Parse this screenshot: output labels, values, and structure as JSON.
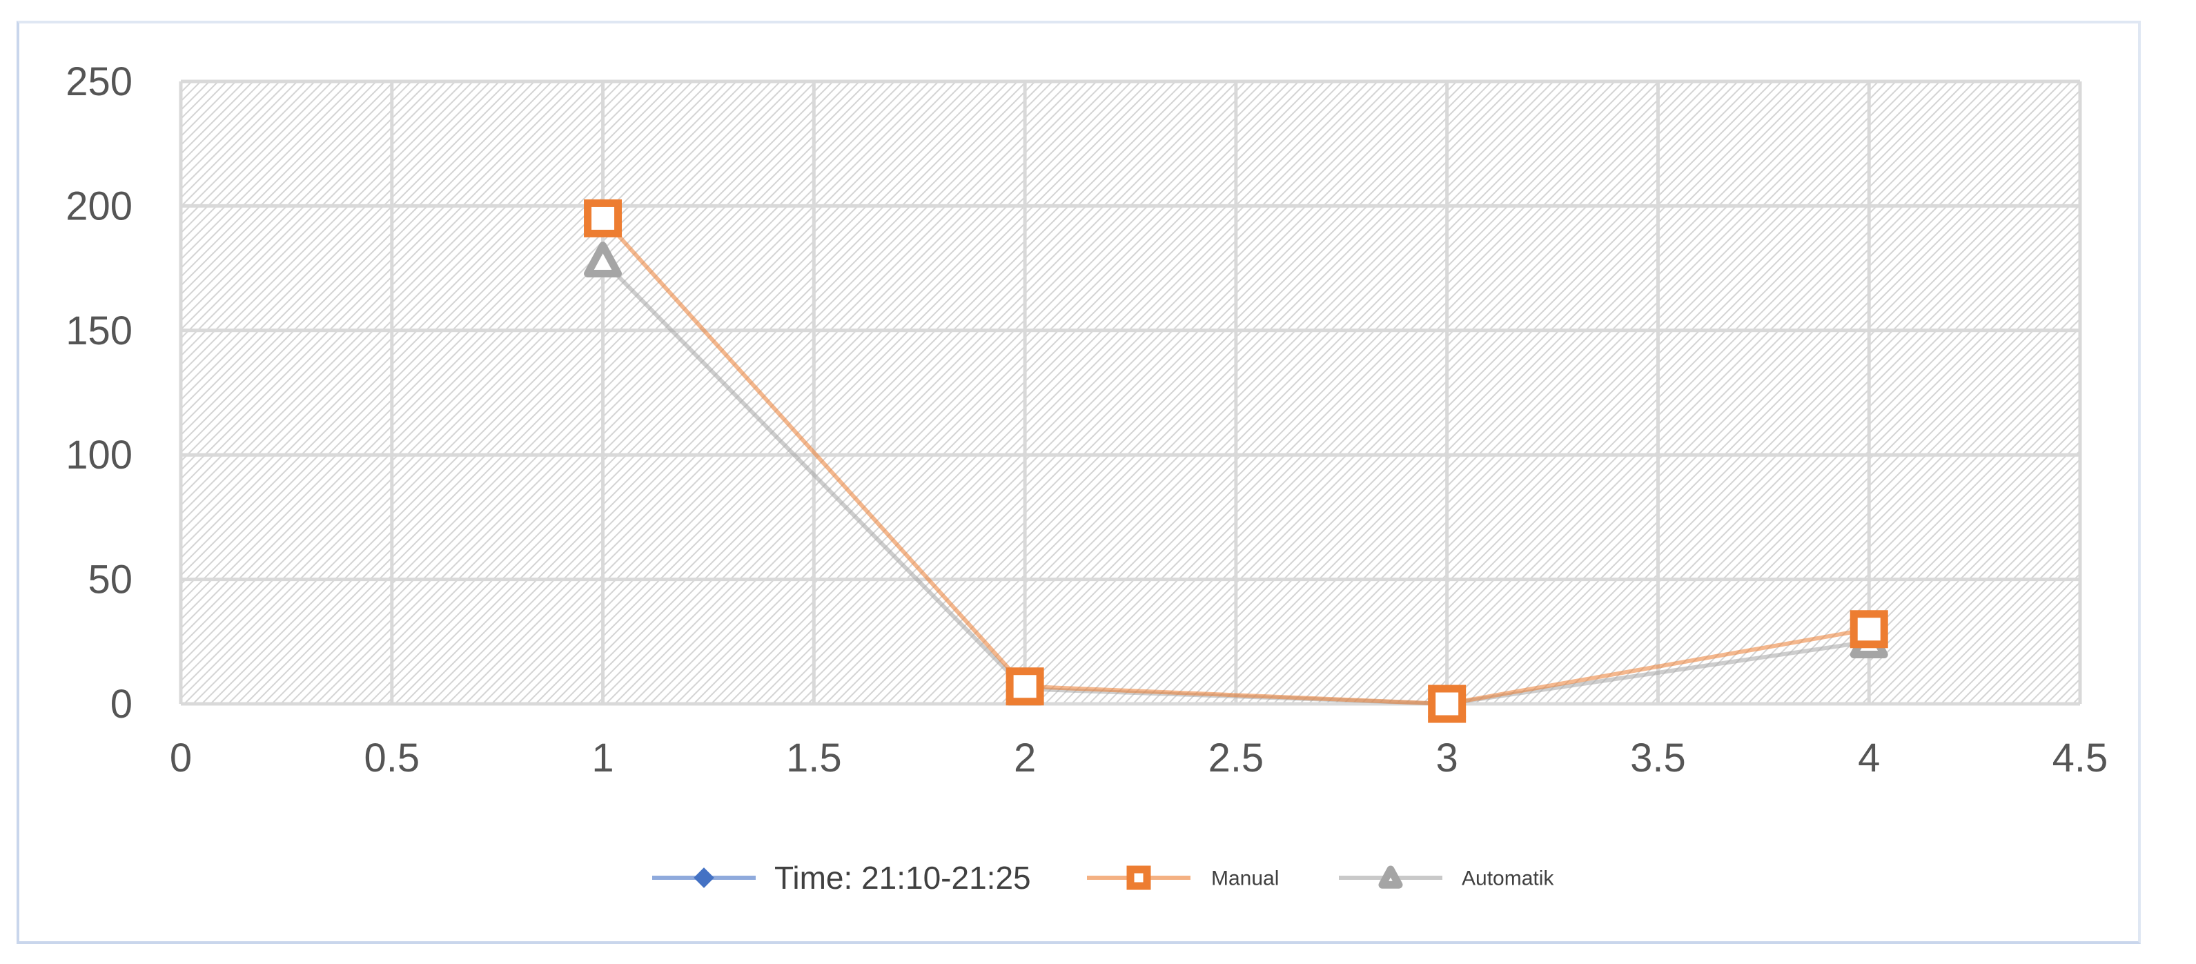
{
  "chart_data": {
    "type": "scatter",
    "title": "",
    "xlabel": "",
    "ylabel": "",
    "xlim": [
      0,
      4.5
    ],
    "ylim": [
      0,
      250
    ],
    "x_ticks": [
      "0",
      "0.5",
      "1",
      "1.5",
      "2",
      "2.5",
      "3",
      "3.5",
      "4",
      "4.5"
    ],
    "y_ticks": [
      "0",
      "50",
      "100",
      "150",
      "200",
      "250"
    ],
    "grid": true,
    "legend_position": "bottom",
    "series": [
      {
        "name": "Time: 21:10-21:25",
        "color": "#4472c4",
        "marker": "diamond",
        "x": [],
        "y": []
      },
      {
        "name": "Manual",
        "color": "#ed7d31",
        "marker": "square",
        "x": [
          1,
          2,
          3,
          4
        ],
        "y": [
          195,
          7,
          0,
          30
        ]
      },
      {
        "name": "Automatik",
        "color": "#a5a5a5",
        "marker": "triangle",
        "x": [
          1,
          2,
          3,
          4
        ],
        "y": [
          178,
          6,
          0,
          25
        ]
      }
    ]
  }
}
